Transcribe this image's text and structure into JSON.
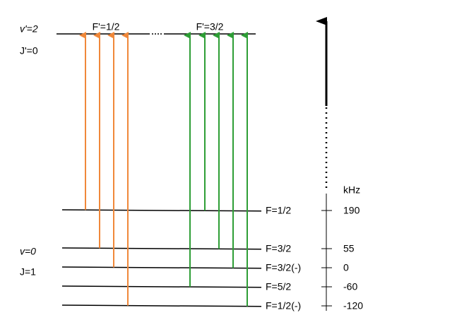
{
  "upper": {
    "v_label": "v'=2",
    "j_label": "J'=0",
    "levels": [
      "F'=1/2",
      "F'=3/2"
    ]
  },
  "lower": {
    "v_label": "v=0",
    "j_label": "J=1",
    "levels": [
      {
        "label": "F=1/2",
        "energy": "190"
      },
      {
        "label": "F=3/2",
        "energy": "55"
      },
      {
        "label": "F=3/2(-)",
        "energy": "0"
      },
      {
        "label": "F=5/2",
        "energy": "-60"
      },
      {
        "label": "F=1/2(-)",
        "energy": "-120"
      }
    ]
  },
  "axis": {
    "unit": "kHz"
  }
}
